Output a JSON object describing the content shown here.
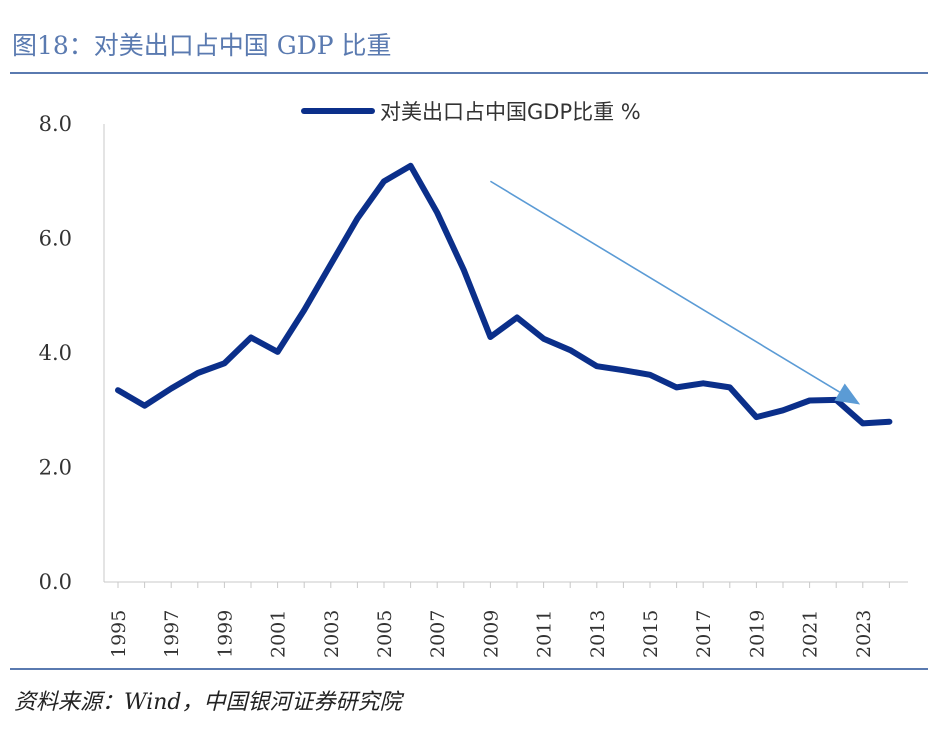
{
  "figure": {
    "title": "图18：对美出口占中国 GDP 比重",
    "source": "资料来源：Wind，中国银河证券研究院"
  },
  "chart_data": {
    "type": "line",
    "title": "",
    "xlabel": "",
    "ylabel": "",
    "ylim": [
      0,
      8
    ],
    "y_ticks": [
      0,
      2,
      4,
      6,
      8
    ],
    "y_tick_labels": [
      "0.0",
      "2.0",
      "4.0",
      "6.0",
      "8.0"
    ],
    "x_tick_labels": [
      "1995",
      "1997",
      "1999",
      "2001",
      "2003",
      "2005",
      "2007",
      "2009",
      "2011",
      "2013",
      "2015",
      "2017",
      "2019",
      "2021",
      "2023"
    ],
    "legend": "top-center",
    "series": [
      {
        "name": "对美出口占中国GDP比重 %",
        "color": "#0b2f8a",
        "x": [
          1995,
          1996,
          1997,
          1998,
          1999,
          2000,
          2001,
          2002,
          2003,
          2004,
          2005,
          2006,
          2007,
          2008,
          2009,
          2010,
          2011,
          2012,
          2013,
          2014,
          2015,
          2016,
          2017,
          2018,
          2019,
          2020,
          2021,
          2022,
          2023,
          2024
        ],
        "values": [
          3.35,
          3.08,
          3.38,
          3.65,
          3.82,
          4.27,
          4.02,
          4.75,
          5.55,
          6.35,
          7.0,
          7.27,
          6.45,
          5.45,
          4.28,
          4.62,
          4.25,
          4.05,
          3.77,
          3.7,
          3.62,
          3.4,
          3.47,
          3.4,
          2.88,
          3.0,
          3.17,
          3.18,
          2.77,
          2.8
        ]
      }
    ],
    "annotations": [
      {
        "type": "trend-arrow",
        "color": "#5b9bd5",
        "from": [
          2009,
          7.0
        ],
        "to": [
          2022.9,
          3.1
        ]
      }
    ]
  }
}
